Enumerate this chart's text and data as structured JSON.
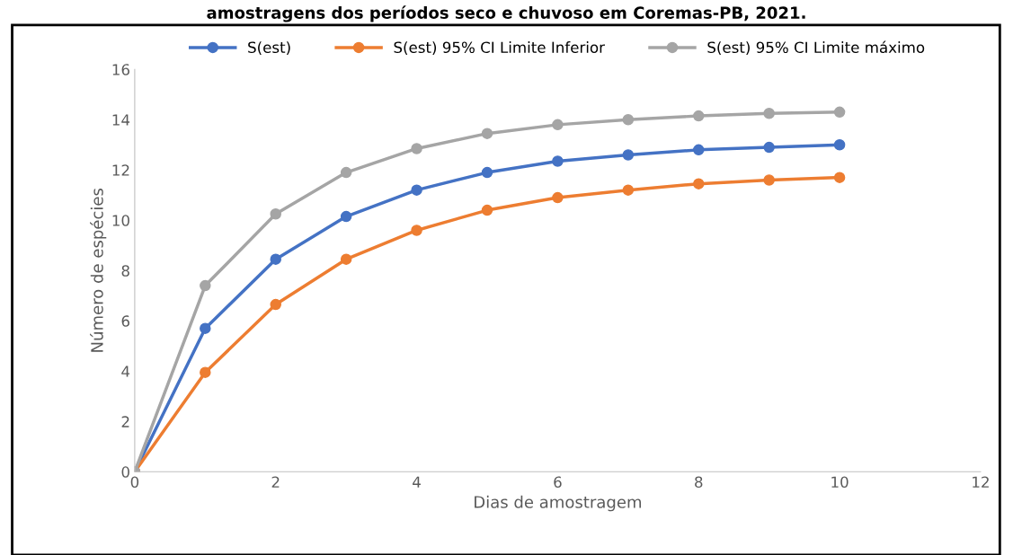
{
  "chart_data": {
    "type": "line",
    "title": "amostragens dos períodos seco e chuvoso em Coremas-PB, 2021.",
    "xlabel": "Dias de amostragem",
    "ylabel": "Número de espécies",
    "x": [
      0,
      1,
      2,
      3,
      4,
      5,
      6,
      7,
      8,
      9,
      10
    ],
    "series": [
      {
        "name": "S(est)",
        "color": "#4472c4",
        "values": [
          0,
          5.7,
          8.45,
          10.15,
          11.2,
          11.9,
          12.35,
          12.6,
          12.8,
          12.9,
          13.0
        ]
      },
      {
        "name": "S(est) 95% CI Limite Inferior",
        "color": "#ed7d31",
        "values": [
          0,
          3.95,
          6.65,
          8.45,
          9.6,
          10.4,
          10.9,
          11.2,
          11.45,
          11.6,
          11.7
        ]
      },
      {
        "name": "S(est) 95% CI Limite máximo",
        "color": "#a5a5a5",
        "values": [
          0,
          7.4,
          10.25,
          11.9,
          12.85,
          13.45,
          13.8,
          14.0,
          14.15,
          14.25,
          14.3
        ]
      }
    ],
    "xlim": [
      0,
      12
    ],
    "xticks": [
      0,
      2,
      4,
      6,
      8,
      10,
      12
    ],
    "ylim": [
      0,
      16
    ],
    "yticks": [
      0,
      2,
      4,
      6,
      8,
      10,
      12,
      14,
      16
    ],
    "grid": false,
    "legend": "top",
    "marker": "circle",
    "line_style": "solid"
  }
}
